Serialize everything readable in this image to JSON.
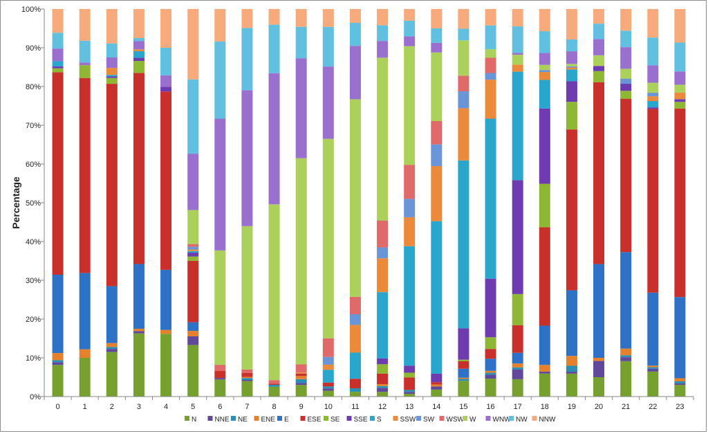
{
  "chart_data": {
    "type": "bar",
    "stacked": true,
    "normalized": true,
    "title": "",
    "xlabel": "",
    "ylabel": "Percentage",
    "ylim": [
      0,
      100
    ],
    "yticks": [
      "0%",
      "10%",
      "20%",
      "30%",
      "40%",
      "50%",
      "60%",
      "70%",
      "80%",
      "90%",
      "100%"
    ],
    "grid": false,
    "legend_position": "bottom",
    "categories": [
      "0",
      "1",
      "2",
      "3",
      "4",
      "5",
      "6",
      "7",
      "8",
      "9",
      "10",
      "11",
      "12",
      "13",
      "14",
      "15",
      "16",
      "17",
      "18",
      "19",
      "20",
      "21",
      "22",
      "23"
    ],
    "series": [
      {
        "name": "N",
        "color": "#77a12f",
        "values": [
          8,
          10,
          11.5,
          16.3,
          16.2,
          13.2,
          4.4,
          4,
          2.5,
          3,
          1.5,
          1.2,
          1.2,
          0.7,
          1.8,
          4,
          4.6,
          4.4,
          5.8,
          5.8,
          4.9,
          9,
          6.3,
          3
        ]
      },
      {
        "name": "NNE",
        "color": "#60489a",
        "values": [
          0.7,
          0,
          0.8,
          0.6,
          0,
          2.2,
          0.4,
          0.3,
          0,
          0.5,
          0.6,
          0,
          1,
          0.5,
          0.8,
          0,
          1,
          2.5,
          0.5,
          0.5,
          4.1,
          1,
          0.7,
          0.4
        ]
      },
      {
        "name": "NE",
        "color": "#2a8fb2",
        "values": [
          0.5,
          0,
          0.5,
          0,
          0,
          0,
          0,
          0.5,
          0.5,
          1,
          0.5,
          0.9,
          0.5,
          0.5,
          0,
          0.5,
          0.5,
          0.5,
          0,
          1.5,
          0,
          0.5,
          0.4,
          0.5
        ]
      },
      {
        "name": "ENE",
        "color": "#e5812c",
        "values": [
          1.8,
          2.2,
          1,
          0.6,
          1,
          1.4,
          0,
          0.3,
          0,
          0.8,
          0,
          0,
          0.5,
          0,
          0.5,
          0.3,
          0.5,
          1,
          1.7,
          2.5,
          0.8,
          1.7,
          0.4,
          0.8
        ]
      },
      {
        "name": "E",
        "color": "#2d72c6",
        "values": [
          19.8,
          19.7,
          14.7,
          16.7,
          15.5,
          2.2,
          0,
          0,
          0,
          0,
          0,
          0,
          0,
          0,
          0,
          2.3,
          3.1,
          2.7,
          9.9,
          16.6,
          23.7,
          24.5,
          18.4,
          20.8
        ]
      },
      {
        "name": "ESE",
        "color": "#c9302b",
        "values": [
          51.2,
          50.3,
          52.2,
          49.3,
          46,
          15.7,
          1.8,
          1,
          0.3,
          0.6,
          1,
          2.4,
          2.7,
          3.2,
          0.6,
          1.9,
          2.5,
          7,
          24.8,
          40.7,
          46,
          39,
          46.3,
          48.3
        ]
      },
      {
        "name": "SE",
        "color": "#8eb733",
        "values": [
          1,
          3.3,
          1.5,
          3.1,
          0,
          1.1,
          0,
          0,
          0,
          0,
          0,
          0,
          2.4,
          1.2,
          0,
          0.4,
          3,
          7.9,
          11,
          7,
          2.8,
          2,
          0,
          1.7
        ]
      },
      {
        "name": "SSE",
        "color": "#6e3bb0",
        "values": [
          0.5,
          0,
          0.4,
          0.8,
          1.2,
          1,
          0,
          0,
          0,
          0,
          0,
          0,
          1.5,
          1.8,
          2.2,
          8,
          15,
          28.9,
          19,
          5.2,
          1.3,
          1.8,
          0.4,
          0.7
        ]
      },
      {
        "name": "S",
        "color": "#28a6cc",
        "values": [
          1.3,
          0,
          0.4,
          1.7,
          0,
          0.4,
          0,
          0,
          0,
          0,
          3.3,
          6.6,
          17,
          30.5,
          39.3,
          42.8,
          41,
          27.5,
          7.2,
          3,
          0,
          0,
          1.6,
          0
        ]
      },
      {
        "name": "SSW",
        "color": "#ec8a3c",
        "values": [
          0,
          0,
          1.8,
          0.5,
          0,
          0.4,
          0,
          0,
          0,
          0.3,
          1.3,
          7,
          8.7,
          7.4,
          14.2,
          13.3,
          10,
          1.8,
          2,
          0.5,
          0,
          0,
          1.2,
          1.7
        ]
      },
      {
        "name": "SW",
        "color": "#6a95d6",
        "values": [
          0,
          0,
          0,
          0,
          0,
          0.7,
          0,
          0,
          0,
          0,
          2,
          2.7,
          2.8,
          4.7,
          5.6,
          4.3,
          1.7,
          0,
          0.5,
          0.3,
          0,
          1.3,
          0.9,
          0
        ]
      },
      {
        "name": "WSW",
        "color": "#e06a6a",
        "values": [
          0,
          0,
          0,
          0,
          0,
          0.7,
          1.6,
          0.9,
          0.9,
          2.1,
          4.8,
          4.4,
          6.9,
          8.7,
          6,
          4,
          3.9,
          0,
          0,
          0,
          0,
          0,
          0,
          0
        ]
      },
      {
        "name": "W",
        "color": "#acd15a",
        "values": [
          0,
          0,
          0,
          0,
          0,
          8.7,
          29.5,
          37.1,
          44.9,
          53.2,
          51.3,
          49.9,
          41.8,
          30.3,
          17.7,
          9,
          2.2,
          2.5,
          1.3,
          0.6,
          2.7,
          2.5,
          2.5,
          2
        ]
      },
      {
        "name": "WNW",
        "color": "#9a70cf",
        "values": [
          3.2,
          0.7,
          2.7,
          2.1,
          3,
          14.4,
          34,
          35.2,
          33.5,
          25.8,
          18.6,
          13.5,
          4.3,
          2.5,
          2.5,
          0,
          0,
          0.5,
          3,
          3.2,
          4.1,
          5.5,
          4.4,
          3.4
        ]
      },
      {
        "name": "NW",
        "color": "#61bfe0",
        "values": [
          4,
          5.6,
          3.6,
          0.8,
          7.1,
          19,
          19.9,
          16.1,
          12.4,
          8.1,
          10.2,
          5.8,
          4,
          4,
          3.7,
          3,
          6.1,
          6.7,
          5.5,
          3,
          3.9,
          4.2,
          7,
          7.4
        ]
      },
      {
        "name": "NNW",
        "color": "#f7ab7c",
        "values": [
          6,
          8.2,
          8.9,
          7.5,
          10,
          18,
          8.4,
          4.9,
          4,
          4.6,
          4.6,
          3.5,
          4.2,
          3,
          5,
          5,
          4.2,
          4.4,
          5.6,
          7.7,
          3.7,
          5.5,
          7.2,
          8.6
        ]
      }
    ]
  }
}
